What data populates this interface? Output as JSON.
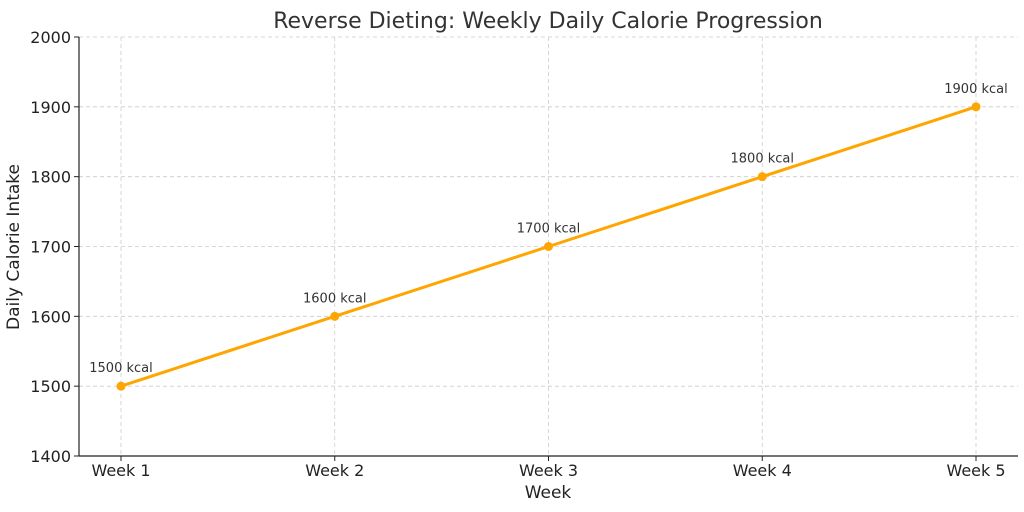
{
  "chart_data": {
    "type": "line",
    "title": "Reverse Dieting: Weekly Daily Calorie Progression",
    "xlabel": "Week",
    "ylabel": "Daily Calorie Intake",
    "categories": [
      "Week 1",
      "Week 2",
      "Week 3",
      "Week 4",
      "Week 5"
    ],
    "series": [
      {
        "values": [
          1500,
          1600,
          1700,
          1800,
          1900
        ],
        "data_labels": [
          "1500 kcal",
          "1600 kcal",
          "1700 kcal",
          "1800 kcal",
          "1900 kcal"
        ],
        "color": "#FFA500"
      }
    ],
    "ylim": [
      1400,
      2000
    ],
    "yticks": [
      1400,
      1500,
      1600,
      1700,
      1800,
      1900,
      2000
    ],
    "grid": true,
    "grid_style": "dashed",
    "markers": true
  }
}
